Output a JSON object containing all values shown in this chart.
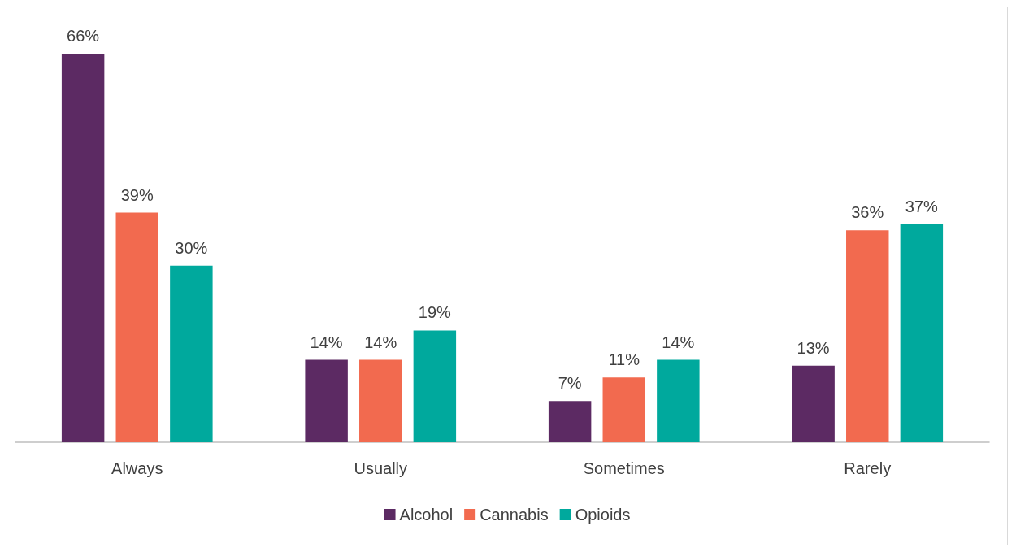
{
  "chart_data": {
    "type": "bar",
    "categories": [
      "Always",
      "Usually",
      "Sometimes",
      "Rarely"
    ],
    "series": [
      {
        "name": "Alcohol",
        "color": "#5c2a63",
        "values": [
          66,
          14,
          7,
          13
        ],
        "value_labels": [
          "66%",
          "14%",
          "7%",
          "13%"
        ]
      },
      {
        "name": "Cannabis",
        "color": "#f26a4f",
        "values": [
          39,
          14,
          11,
          36
        ],
        "value_labels": [
          "39%",
          "14%",
          "11%",
          "36%"
        ]
      },
      {
        "name": "Opioids",
        "color": "#00a99d",
        "values": [
          30,
          19,
          14,
          37
        ],
        "value_labels": [
          "30%",
          "19%",
          "14%",
          "37%"
        ]
      }
    ],
    "legend": "bottom"
  }
}
